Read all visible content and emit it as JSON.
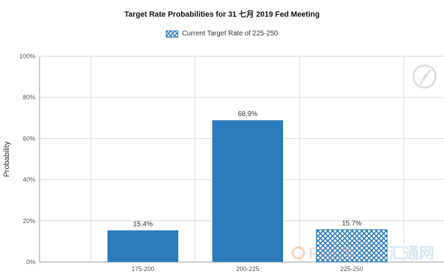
{
  "title": "Target Rate Probabilities for 31 七月 2019  Fed Meeting",
  "legend": {
    "label": "Current Target Rate of 225-250"
  },
  "colors": {
    "bar": "#2b7bba",
    "bar_stroke": "#1f5f94",
    "grid": "#d9d9d9",
    "axis": "#999999",
    "hatch_bg": "#ffffff"
  },
  "watermark": {
    "left_text": "FX678",
    "right_text": "汇通网"
  },
  "chart_data": {
    "type": "bar",
    "title": "Target Rate Probabilities for 31 七月 2019  Fed Meeting",
    "xlabel": "",
    "ylabel": "Probability",
    "categories": [
      "175-200",
      "200-225",
      "225-250"
    ],
    "values": [
      15.4,
      68.9,
      15.7
    ],
    "value_labels": [
      "15.4%",
      "68.9%",
      "15.7%"
    ],
    "current_target_category": "225-250",
    "ylim": [
      0,
      100
    ],
    "yticks": [
      0,
      20,
      40,
      60,
      80,
      100
    ],
    "ytick_labels": [
      "0%",
      "20%",
      "40%",
      "60%",
      "80%",
      "100%"
    ],
    "grid": true,
    "legend_position": "top-center"
  }
}
